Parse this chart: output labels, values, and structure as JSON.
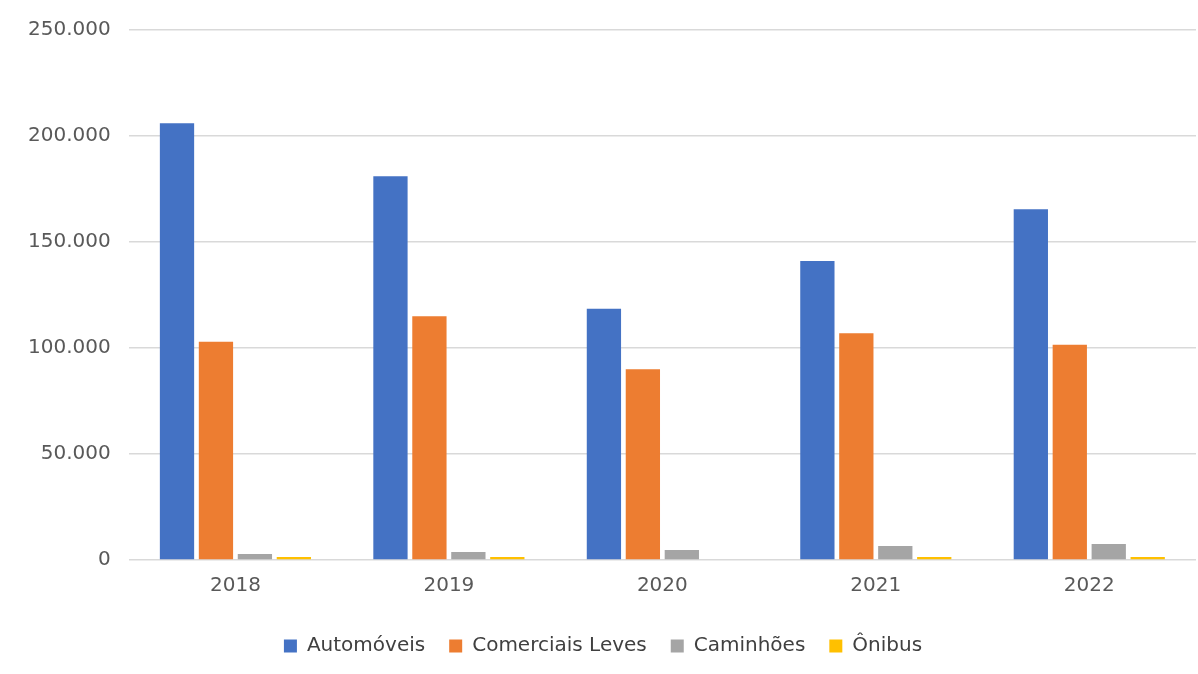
{
  "chart_data": {
    "type": "bar",
    "categories": [
      "2018",
      "2019",
      "2020",
      "2021",
      "2022"
    ],
    "series": [
      {
        "name": "Automóveis",
        "color": "#4472c4",
        "values": [
          206000,
          181000,
          118500,
          141000,
          165500
        ]
      },
      {
        "name": "Comerciais Leves",
        "color": "#ed7d31",
        "values": [
          103000,
          115000,
          90000,
          107000,
          101500
        ]
      },
      {
        "name": "Caminhões",
        "color": "#a5a5a5",
        "values": [
          2800,
          3800,
          4700,
          6600,
          7500
        ]
      },
      {
        "name": "Ônibus",
        "color": "#ffc000",
        "values": [
          1400,
          1400,
          null,
          1400,
          1400
        ]
      }
    ],
    "ylim": [
      0,
      250000
    ],
    "yticks": [
      {
        "value": 0,
        "label": "0"
      },
      {
        "value": 50000,
        "label": "50.000"
      },
      {
        "value": 100000,
        "label": "100.000"
      },
      {
        "value": 150000,
        "label": "150.000"
      },
      {
        "value": 200000,
        "label": "200.000"
      },
      {
        "value": 250000,
        "label": "250.000"
      }
    ],
    "grid": "y",
    "legend": "bottom"
  }
}
